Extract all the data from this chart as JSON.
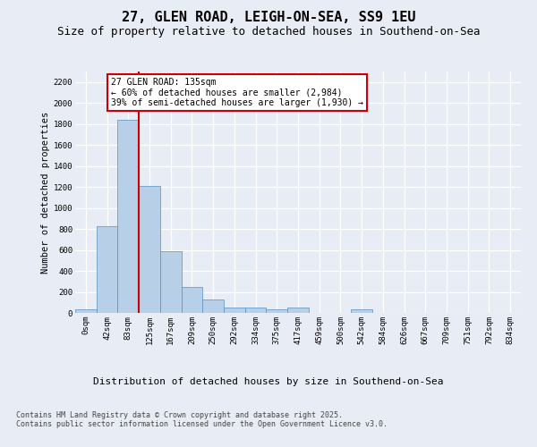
{
  "title1": "27, GLEN ROAD, LEIGH-ON-SEA, SS9 1EU",
  "title2": "Size of property relative to detached houses in Southend-on-Sea",
  "xlabel": "Distribution of detached houses by size in Southend-on-Sea",
  "ylabel": "Number of detached properties",
  "footnote": "Contains HM Land Registry data © Crown copyright and database right 2025.\nContains public sector information licensed under the Open Government Licence v3.0.",
  "categories": [
    "0sqm",
    "42sqm",
    "83sqm",
    "125sqm",
    "167sqm",
    "209sqm",
    "250sqm",
    "292sqm",
    "334sqm",
    "375sqm",
    "417sqm",
    "459sqm",
    "500sqm",
    "542sqm",
    "584sqm",
    "626sqm",
    "667sqm",
    "709sqm",
    "751sqm",
    "792sqm",
    "834sqm"
  ],
  "values": [
    30,
    830,
    1840,
    1210,
    590,
    245,
    130,
    55,
    50,
    35,
    50,
    0,
    0,
    30,
    0,
    0,
    0,
    0,
    0,
    0,
    0
  ],
  "bar_color": "#b8cfe8",
  "bar_edge_color": "#5a8fbe",
  "vline_color": "#cc0000",
  "vline_x_idx": 2.5,
  "annotation_text": "27 GLEN ROAD: 135sqm\n← 60% of detached houses are smaller (2,984)\n39% of semi-detached houses are larger (1,930) →",
  "annotation_edge_color": "#cc0000",
  "ylim": [
    0,
    2300
  ],
  "yticks": [
    0,
    200,
    400,
    600,
    800,
    1000,
    1200,
    1400,
    1600,
    1800,
    2000,
    2200
  ],
  "bg_color": "#e8edf5",
  "grid_color": "#d0d8e8",
  "title1_fontsize": 11,
  "title2_fontsize": 9,
  "ylabel_fontsize": 7.5,
  "xlabel_fontsize": 8,
  "tick_fontsize": 6.5,
  "annotation_fontsize": 7,
  "footnote_fontsize": 6
}
